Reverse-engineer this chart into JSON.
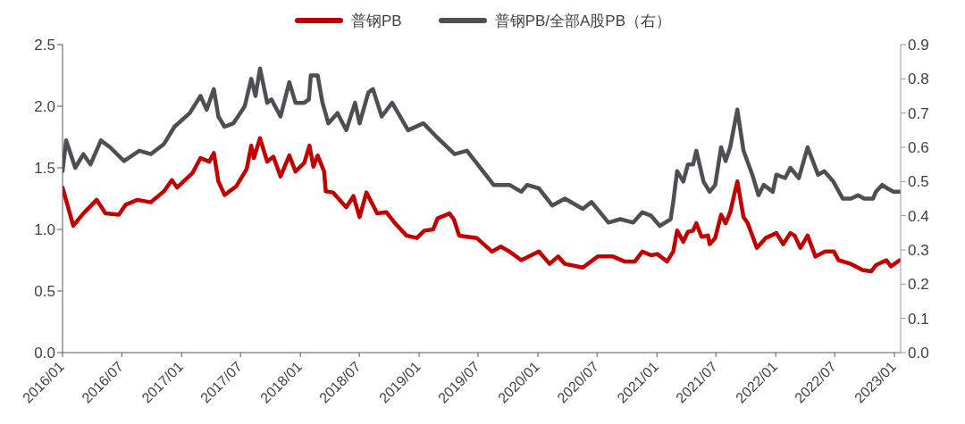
{
  "chart_data": {
    "type": "line",
    "legend": "top",
    "marker": "none",
    "xlim": [
      "2016-01-01",
      "2023-01-20"
    ],
    "xticks": [
      {
        "value": "2016-01",
        "label": "2016/01"
      },
      {
        "value": "2016-07",
        "label": "2016/07"
      },
      {
        "value": "2017-01",
        "label": "2017/01"
      },
      {
        "value": "2017-07",
        "label": "2017/07"
      },
      {
        "value": "2018-01",
        "label": "2018/01"
      },
      {
        "value": "2018-07",
        "label": "2018/07"
      },
      {
        "value": "2019-01",
        "label": "2019/01"
      },
      {
        "value": "2019-07",
        "label": "2019/07"
      },
      {
        "value": "2020-01",
        "label": "2020/01"
      },
      {
        "value": "2020-07",
        "label": "2020/07"
      },
      {
        "value": "2021-01",
        "label": "2021/01"
      },
      {
        "value": "2021-07",
        "label": "2021/07"
      },
      {
        "value": "2022-01",
        "label": "2022/01"
      },
      {
        "value": "2022-07",
        "label": "2022/07"
      },
      {
        "value": "2023-01",
        "label": "2023/01"
      }
    ],
    "ylim": [
      0,
      2.5
    ],
    "yticks": [
      {
        "value": 0,
        "label": "0.0"
      },
      0.5,
      {
        "value": 1,
        "label": "1.0"
      },
      1.5,
      {
        "value": 2,
        "label": "2.0"
      },
      2.5
    ],
    "y2lim": [
      0,
      0.9
    ],
    "y2ticks": [
      {
        "value": 0,
        "label": "0.0"
      },
      0.1,
      0.2,
      0.3,
      0.4,
      0.5,
      0.6,
      0.7,
      0.8,
      0.9
    ],
    "series": [
      {
        "name": "普钢PB",
        "color": "#c00000",
        "x": [
          "2016-01-01",
          "2016-02-03",
          "2016-03-05",
          "2016-04-15",
          "2016-05-12",
          "2016-06-22",
          "2016-07-13",
          "2016-08-18",
          "2016-09-28",
          "2016-11-08",
          "2016-12-02",
          "2016-12-18",
          "2017-02-04",
          "2017-02-28",
          "2017-03-27",
          "2017-04-10",
          "2017-04-24",
          "2017-05-13",
          "2017-06-18",
          "2017-07-20",
          "2017-08-03",
          "2017-08-11",
          "2017-08-30",
          "2017-09-21",
          "2017-10-10",
          "2017-11-01",
          "2017-11-28",
          "2017-12-17",
          "2018-01-13",
          "2018-01-29",
          "2018-02-10",
          "2018-02-23",
          "2018-03-15",
          "2018-03-20",
          "2018-04-11",
          "2018-05-22",
          "2018-06-13",
          "2018-07-02",
          "2018-07-23",
          "2018-08-25",
          "2018-09-22",
          "2018-10-19",
          "2018-11-23",
          "2018-12-25",
          "2019-01-17",
          "2019-02-13",
          "2019-02-27",
          "2019-04-04",
          "2019-04-18",
          "2019-05-04",
          "2019-06-27",
          "2019-08-13",
          "2019-09-09",
          "2019-10-06",
          "2019-11-11",
          "2020-01-04",
          "2020-02-06",
          "2020-03-03",
          "2020-03-24",
          "2020-05-18",
          "2020-07-03",
          "2020-08-19",
          "2020-09-23",
          "2020-10-25",
          "2020-11-17",
          "2020-12-14",
          "2021-01-02",
          "2021-02-01",
          "2021-02-20",
          "2021-03-04",
          "2021-03-23",
          "2021-04-06",
          "2021-04-22",
          "2021-05-02",
          "2021-05-18",
          "2021-06-07",
          "2021-06-12",
          "2021-06-29",
          "2021-07-17",
          "2021-07-31",
          "2021-08-14",
          "2021-09-05",
          "2021-09-24",
          "2021-10-07",
          "2021-11-04",
          "2021-12-01",
          "2022-01-03",
          "2022-01-24",
          "2022-02-15",
          "2022-02-28",
          "2022-03-18",
          "2022-04-09",
          "2022-05-03",
          "2022-06-02",
          "2022-06-29",
          "2022-07-13",
          "2022-08-20",
          "2022-09-25",
          "2022-10-22",
          "2022-11-05",
          "2022-12-07",
          "2022-12-21",
          "2023-01-17"
        ],
        "values": [
          1.34,
          1.03,
          1.13,
          1.24,
          1.13,
          1.12,
          1.2,
          1.24,
          1.22,
          1.31,
          1.4,
          1.34,
          1.46,
          1.58,
          1.55,
          1.62,
          1.39,
          1.28,
          1.35,
          1.49,
          1.68,
          1.58,
          1.74,
          1.55,
          1.59,
          1.43,
          1.6,
          1.47,
          1.54,
          1.68,
          1.51,
          1.6,
          1.47,
          1.31,
          1.3,
          1.18,
          1.27,
          1.1,
          1.3,
          1.13,
          1.14,
          1.05,
          0.95,
          0.93,
          0.99,
          1.0,
          1.09,
          1.13,
          1.08,
          0.95,
          0.93,
          0.82,
          0.86,
          0.82,
          0.75,
          0.82,
          0.72,
          0.78,
          0.72,
          0.69,
          0.78,
          0.78,
          0.74,
          0.74,
          0.82,
          0.79,
          0.8,
          0.74,
          0.82,
          0.99,
          0.9,
          0.98,
          0.99,
          1.05,
          0.94,
          0.95,
          0.88,
          0.93,
          1.12,
          1.05,
          1.14,
          1.39,
          1.1,
          1.05,
          0.85,
          0.93,
          0.97,
          0.88,
          0.97,
          0.95,
          0.85,
          0.95,
          0.78,
          0.82,
          0.82,
          0.75,
          0.72,
          0.67,
          0.66,
          0.71,
          0.75,
          0.7,
          0.75
        ]
      },
      {
        "name": "普钢PB/全部A股PB（右）",
        "color": "#4d4f53",
        "axis": "y2",
        "x": [
          "2016-01-01",
          "2016-01-12",
          "2016-02-09",
          "2016-03-05",
          "2016-03-27",
          "2016-04-28",
          "2016-05-26",
          "2016-07-08",
          "2016-08-24",
          "2016-09-28",
          "2016-11-08",
          "2016-12-10",
          "2017-01-26",
          "2017-02-28",
          "2017-03-19",
          "2017-04-10",
          "2017-04-24",
          "2017-05-13",
          "2017-06-09",
          "2017-07-14",
          "2017-08-03",
          "2017-08-16",
          "2017-08-30",
          "2017-09-21",
          "2017-10-04",
          "2017-11-01",
          "2017-11-28",
          "2017-12-17",
          "2018-01-13",
          "2018-01-27",
          "2018-02-02",
          "2018-02-23",
          "2018-03-10",
          "2018-03-28",
          "2018-04-25",
          "2018-05-22",
          "2018-06-18",
          "2018-07-02",
          "2018-07-29",
          "2018-08-12",
          "2018-09-08",
          "2018-10-10",
          "2018-11-28",
          "2019-01-14",
          "2019-02-24",
          "2019-04-20",
          "2019-05-28",
          "2019-08-18",
          "2019-10-06",
          "2019-11-11",
          "2019-11-29",
          "2020-01-04",
          "2020-02-14",
          "2020-03-24",
          "2020-05-18",
          "2020-06-14",
          "2020-08-05",
          "2020-09-10",
          "2020-10-20",
          "2020-11-17",
          "2020-12-14",
          "2021-01-10",
          "2021-02-12",
          "2021-02-20",
          "2021-03-04",
          "2021-03-23",
          "2021-04-06",
          "2021-04-22",
          "2021-05-02",
          "2021-05-24",
          "2021-06-12",
          "2021-06-29",
          "2021-07-17",
          "2021-07-31",
          "2021-08-14",
          "2021-09-05",
          "2021-09-24",
          "2021-10-21",
          "2021-11-09",
          "2021-11-25",
          "2021-12-23",
          "2022-01-03",
          "2022-01-30",
          "2022-02-15",
          "2022-03-13",
          "2022-04-09",
          "2022-05-11",
          "2022-05-30",
          "2022-06-27",
          "2022-07-26",
          "2022-08-20",
          "2022-09-11",
          "2022-09-30",
          "2022-10-27",
          "2022-11-05",
          "2022-11-24",
          "2022-12-10",
          "2022-12-29",
          "2023-01-17"
        ],
        "values": [
          0.53,
          0.62,
          0.54,
          0.58,
          0.55,
          0.62,
          0.6,
          0.56,
          0.59,
          0.58,
          0.61,
          0.66,
          0.7,
          0.75,
          0.71,
          0.77,
          0.69,
          0.66,
          0.67,
          0.72,
          0.8,
          0.75,
          0.83,
          0.73,
          0.74,
          0.69,
          0.79,
          0.73,
          0.73,
          0.74,
          0.81,
          0.81,
          0.73,
          0.67,
          0.7,
          0.65,
          0.73,
          0.67,
          0.76,
          0.77,
          0.69,
          0.73,
          0.65,
          0.67,
          0.63,
          0.58,
          0.59,
          0.49,
          0.49,
          0.47,
          0.49,
          0.48,
          0.43,
          0.45,
          0.42,
          0.44,
          0.38,
          0.39,
          0.38,
          0.41,
          0.4,
          0.37,
          0.39,
          0.44,
          0.53,
          0.5,
          0.55,
          0.55,
          0.59,
          0.5,
          0.47,
          0.49,
          0.6,
          0.56,
          0.6,
          0.71,
          0.59,
          0.52,
          0.46,
          0.49,
          0.47,
          0.52,
          0.51,
          0.54,
          0.51,
          0.6,
          0.52,
          0.53,
          0.5,
          0.45,
          0.45,
          0.46,
          0.45,
          0.45,
          0.47,
          0.49,
          0.48,
          0.47,
          0.47
        ]
      }
    ]
  }
}
